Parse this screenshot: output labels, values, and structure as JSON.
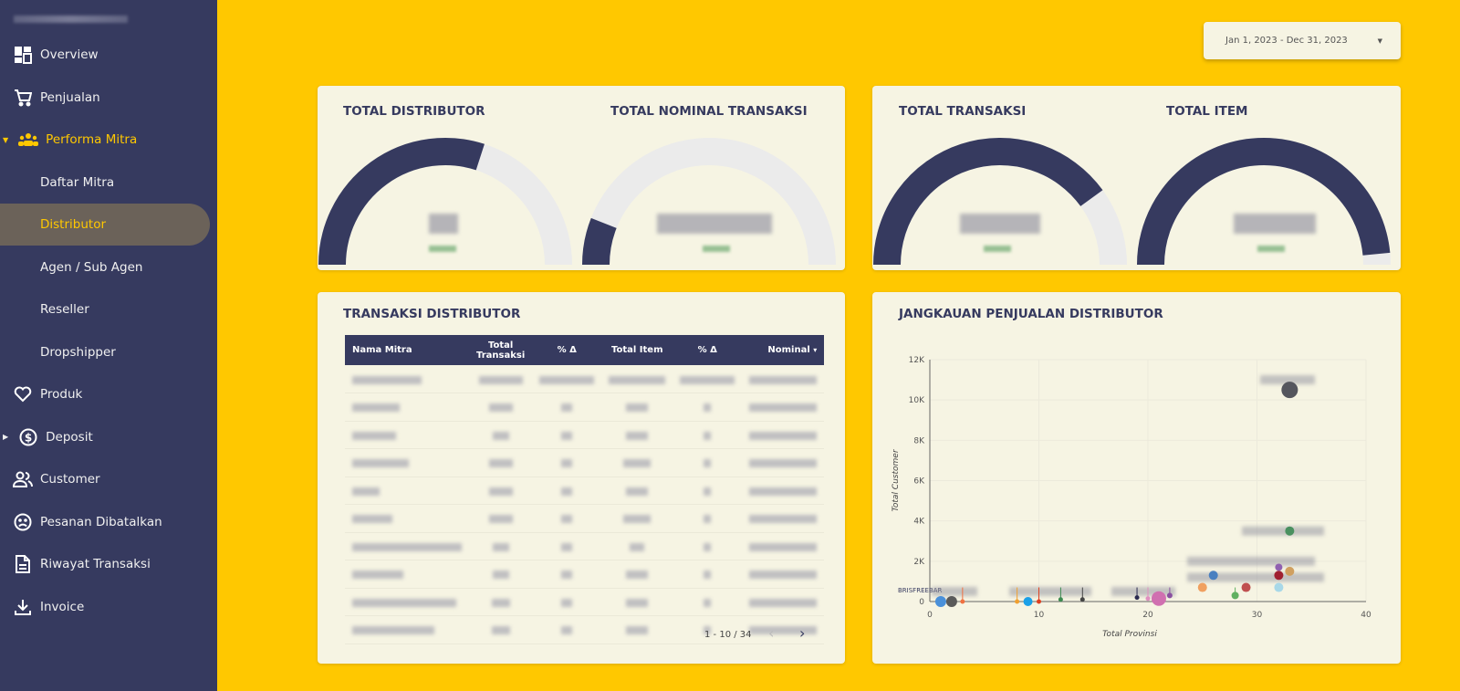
{
  "sidebar": {
    "items": [
      {
        "label": "Overview",
        "icon": "dashboard-icon"
      },
      {
        "label": "Penjualan",
        "icon": "cart-icon"
      },
      {
        "label": "Performa Mitra",
        "icon": "group-icon",
        "expanded": true
      },
      {
        "label": "Daftar Mitra"
      },
      {
        "label": "Distributor",
        "selected": true
      },
      {
        "label": "Agen / Sub Agen"
      },
      {
        "label": "Reseller"
      },
      {
        "label": "Dropshipper"
      },
      {
        "label": "Produk",
        "icon": "heart-icon"
      },
      {
        "label": "Deposit",
        "icon": "dollar-circle-icon"
      },
      {
        "label": "Customer",
        "icon": "people-icon"
      },
      {
        "label": "Pesanan Dibatalkan",
        "icon": "sad-face-icon"
      },
      {
        "label": "Riwayat Transaksi",
        "icon": "document-icon"
      },
      {
        "label": "Invoice",
        "icon": "download-icon"
      }
    ]
  },
  "date_range": "Jan 1, 2023 - Dec 31, 2023",
  "scorecards": [
    {
      "title": "TOTAL DISTRIBUTOR",
      "gauge_fill": 0.6
    },
    {
      "title": "TOTAL NOMINAL TRANSAKSI",
      "gauge_fill": 0.12
    },
    {
      "title": "TOTAL TRANSAKSI",
      "gauge_fill": 0.8
    },
    {
      "title": "TOTAL ITEM",
      "gauge_fill": 0.97
    }
  ],
  "table": {
    "title": "TRANSAKSI DISTRIBUTOR",
    "headers": [
      "Nama Mitra",
      "Total Transaksi",
      "% Δ",
      "Total Item",
      "% Δ",
      "Nominal"
    ],
    "sort_indicator": "▾",
    "pagination": "1 - 10 / 34"
  },
  "chart_data": {
    "type": "scatter",
    "title": "JANGKAUAN PENJUALAN DISTRIBUTOR",
    "xlabel": "Total Provinsi",
    "ylabel": "Total Customer",
    "xlim": [
      0,
      40
    ],
    "ylim": [
      0,
      12000
    ],
    "xticks": [
      "0",
      "10",
      "20",
      "30",
      "40"
    ],
    "yticks": [
      "0",
      "2K",
      "4K",
      "6K",
      "8K",
      "10K",
      "12K"
    ],
    "grid": true,
    "visible_label": "BRISFREEBAR",
    "points": [
      {
        "x": 1,
        "y": 0,
        "color": "#4a90d9",
        "size": 6
      },
      {
        "x": 2,
        "y": 0,
        "color": "#5a5a5a",
        "size": 6
      },
      {
        "x": 3,
        "y": 0,
        "color": "#f07040",
        "size": 2.5
      },
      {
        "x": 8,
        "y": 0,
        "color": "#f0a030",
        "size": 2.5
      },
      {
        "x": 9,
        "y": 0,
        "color": "#1aa0e8",
        "size": 5
      },
      {
        "x": 10,
        "y": 0,
        "color": "#e04020",
        "size": 2.5
      },
      {
        "x": 12,
        "y": 100,
        "color": "#3c8a50",
        "size": 2.5
      },
      {
        "x": 14,
        "y": 100,
        "color": "#444",
        "size": 2.5
      },
      {
        "x": 19,
        "y": 200,
        "color": "#2a2a50",
        "size": 2.5
      },
      {
        "x": 20,
        "y": 150,
        "color": "#e090c0",
        "size": 2.5
      },
      {
        "x": 21,
        "y": 150,
        "color": "#d070b0",
        "size": 8
      },
      {
        "x": 22,
        "y": 300,
        "color": "#8a50a0",
        "size": 3
      },
      {
        "x": 28,
        "y": 300,
        "color": "#60b060",
        "size": 4
      },
      {
        "x": 25,
        "y": 700,
        "color": "#f0a060",
        "size": 5
      },
      {
        "x": 26,
        "y": 1300,
        "color": "#4a80c0",
        "size": 5
      },
      {
        "x": 29,
        "y": 700,
        "color": "#c05050",
        "size": 5
      },
      {
        "x": 32,
        "y": 700,
        "color": "#a8d8e8",
        "size": 5
      },
      {
        "x": 32,
        "y": 1300,
        "color": "#a02030",
        "size": 5
      },
      {
        "x": 32,
        "y": 1700,
        "color": "#9060b0",
        "size": 4
      },
      {
        "x": 33,
        "y": 1500,
        "color": "#d0a060",
        "size": 5
      },
      {
        "x": 33,
        "y": 3500,
        "color": "#4a9060",
        "size": 5
      },
      {
        "x": 33,
        "y": 10500,
        "color": "#55565e",
        "size": 9
      }
    ]
  }
}
